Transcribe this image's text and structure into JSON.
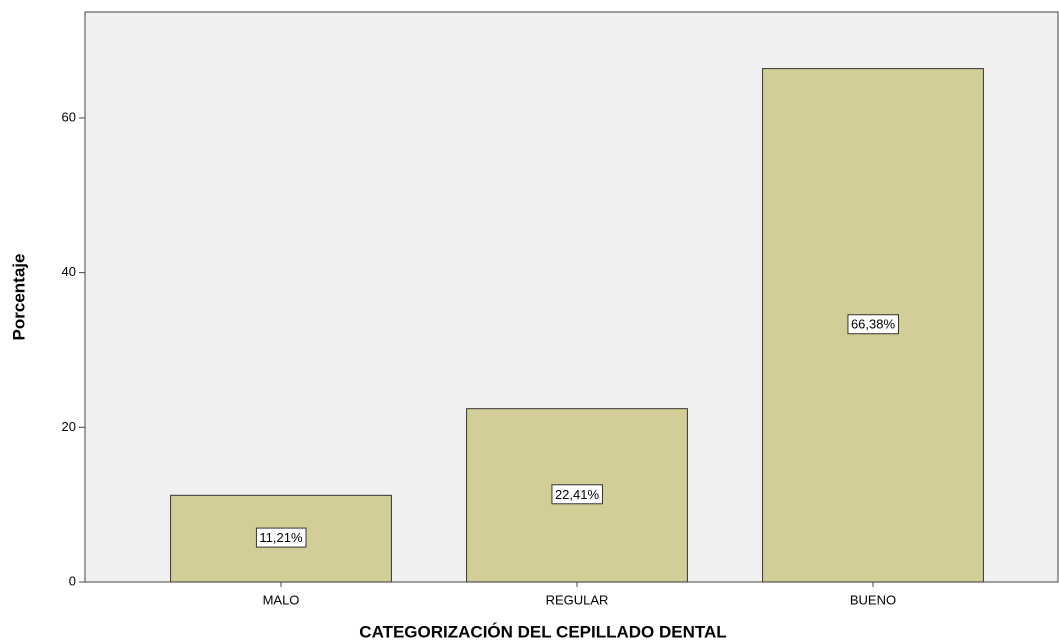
{
  "chart_data": {
    "type": "bar",
    "x_label": "CATEGORIZACIÓN DEL CEPILLADO DENTAL",
    "y_label": "Porcentaje",
    "categories": [
      "MALO",
      "REGULAR",
      "BUENO"
    ],
    "values": [
      11.21,
      22.41,
      66.38
    ],
    "value_labels": [
      "11,21%",
      "22,41%",
      "66,38%"
    ],
    "color": "#d3ce97",
    "ylim": [
      0,
      73.7
    ],
    "yticks": [
      0,
      20,
      40,
      60
    ],
    "grid": false
  }
}
